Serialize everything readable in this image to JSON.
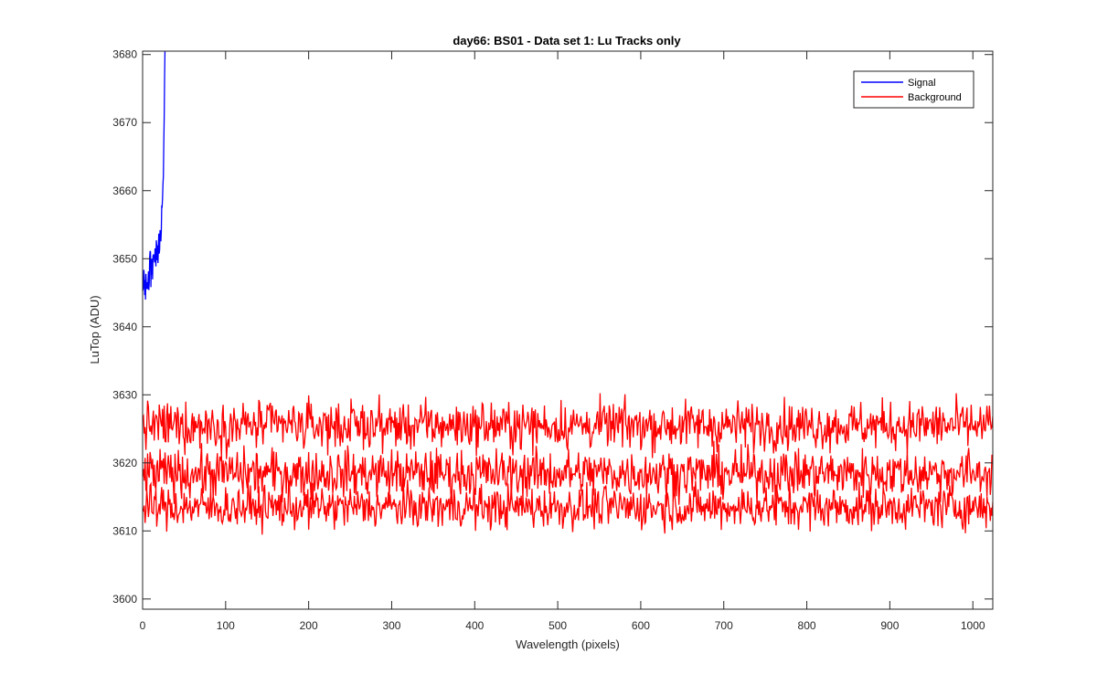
{
  "chart_data": {
    "type": "line",
    "title": "day66: BS01 - Data set 1: Lu Tracks only",
    "xlabel": "Wavelength (pixels)",
    "ylabel": "LuTop (ADU)",
    "xlim": [
      0,
      1024
    ],
    "ylim": [
      3598.5,
      3680.5
    ],
    "xticks": [
      0,
      100,
      200,
      300,
      400,
      500,
      600,
      700,
      800,
      900,
      1000
    ],
    "yticks": [
      3600,
      3610,
      3620,
      3630,
      3640,
      3650,
      3660,
      3670,
      3680
    ],
    "grid": false,
    "legend": {
      "position": "top-right",
      "entries": [
        "Signal",
        "Background"
      ]
    },
    "series": [
      {
        "name": "Signal",
        "color": "#0000ff",
        "x_range": [
          0,
          27
        ],
        "noisy_trend": [
          [
            0,
            3645
          ],
          [
            8,
            3648
          ],
          [
            16,
            3651
          ],
          [
            20,
            3653
          ],
          [
            23,
            3656
          ],
          [
            25,
            3662
          ],
          [
            27,
            3681
          ]
        ],
        "noise_amplitude": 3
      },
      {
        "name": "Background",
        "color": "#ff0000",
        "x_range": [
          0,
          1024
        ],
        "tracks": [
          {
            "mean": 3625.5,
            "noise_range": [
              3621,
              3630
            ]
          },
          {
            "mean": 3618.5,
            "noise_range": [
              3614,
              3623
            ]
          },
          {
            "mean": 3613.5,
            "noise_range": [
              3609,
              3617
            ]
          }
        ]
      }
    ]
  }
}
